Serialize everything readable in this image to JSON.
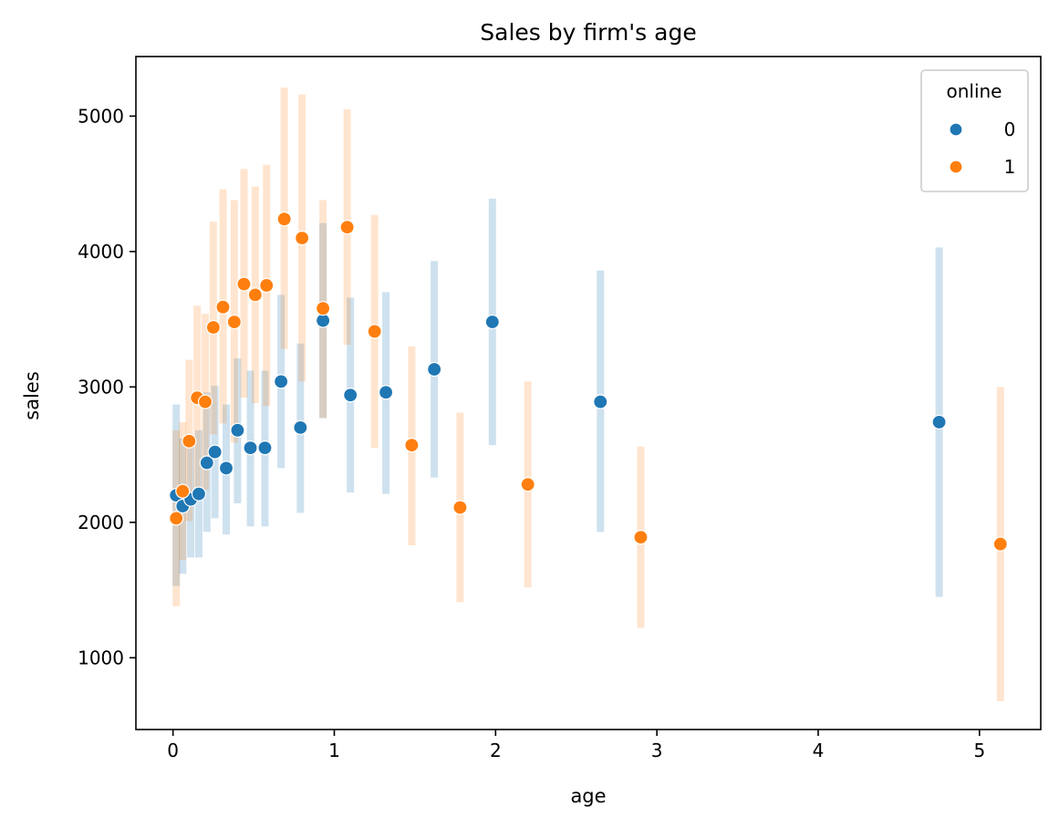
{
  "chart_data": {
    "type": "scatter",
    "title": "Sales by firm's age",
    "xlabel": "age",
    "ylabel": "sales",
    "xlim": [
      -0.23,
      5.38
    ],
    "ylim": [
      470,
      5440
    ],
    "xticks": [
      0,
      1,
      2,
      3,
      4,
      5
    ],
    "xtick_labels": [
      "0",
      "1",
      "2",
      "3",
      "4",
      "5"
    ],
    "yticks": [
      1000,
      2000,
      3000,
      4000,
      5000
    ],
    "ytick_labels": [
      "1000",
      "2000",
      "3000",
      "4000",
      "5000"
    ],
    "grid": false,
    "legend": {
      "title": "online",
      "placement": "top-right",
      "entries": [
        "0",
        "1"
      ]
    },
    "series": [
      {
        "name": "0",
        "color": "#1f77b4",
        "band_color": "#1f77b4",
        "points": [
          {
            "x": 0.02,
            "y": 2200,
            "lo": 1530,
            "hi": 2870
          },
          {
            "x": 0.06,
            "y": 2120,
            "lo": 1620,
            "hi": 2620
          },
          {
            "x": 0.11,
            "y": 2170,
            "lo": 1740,
            "hi": 2600
          },
          {
            "x": 0.16,
            "y": 2210,
            "lo": 1740,
            "hi": 2680
          },
          {
            "x": 0.21,
            "y": 2440,
            "lo": 1930,
            "hi": 2960
          },
          {
            "x": 0.26,
            "y": 2520,
            "lo": 2030,
            "hi": 3010
          },
          {
            "x": 0.33,
            "y": 2400,
            "lo": 1910,
            "hi": 2870
          },
          {
            "x": 0.4,
            "y": 2680,
            "lo": 2140,
            "hi": 3210
          },
          {
            "x": 0.48,
            "y": 2550,
            "lo": 1970,
            "hi": 3120
          },
          {
            "x": 0.57,
            "y": 2550,
            "lo": 1970,
            "hi": 3120
          },
          {
            "x": 0.67,
            "y": 3040,
            "lo": 2400,
            "hi": 3680
          },
          {
            "x": 0.79,
            "y": 2700,
            "lo": 2070,
            "hi": 3320
          },
          {
            "x": 0.93,
            "y": 3490,
            "lo": 2770,
            "hi": 4210
          },
          {
            "x": 1.1,
            "y": 2940,
            "lo": 2220,
            "hi": 3660
          },
          {
            "x": 1.32,
            "y": 2960,
            "lo": 2210,
            "hi": 3700
          },
          {
            "x": 1.62,
            "y": 3130,
            "lo": 2330,
            "hi": 3930
          },
          {
            "x": 1.98,
            "y": 3480,
            "lo": 2570,
            "hi": 4390
          },
          {
            "x": 2.65,
            "y": 2890,
            "lo": 1930,
            "hi": 3860
          },
          {
            "x": 4.75,
            "y": 2740,
            "lo": 1450,
            "hi": 4030
          }
        ]
      },
      {
        "name": "1",
        "color": "#ff7f0e",
        "band_color": "#ff7f0e",
        "points": [
          {
            "x": 0.02,
            "y": 2030,
            "lo": 1380,
            "hi": 2680
          },
          {
            "x": 0.06,
            "y": 2230,
            "lo": 1720,
            "hi": 2740
          },
          {
            "x": 0.1,
            "y": 2600,
            "lo": 2010,
            "hi": 3200
          },
          {
            "x": 0.15,
            "y": 2920,
            "lo": 2240,
            "hi": 3600
          },
          {
            "x": 0.2,
            "y": 2890,
            "lo": 2240,
            "hi": 3540
          },
          {
            "x": 0.25,
            "y": 3440,
            "lo": 2650,
            "hi": 4220
          },
          {
            "x": 0.31,
            "y": 3590,
            "lo": 2730,
            "hi": 4460
          },
          {
            "x": 0.38,
            "y": 3480,
            "lo": 2590,
            "hi": 4380
          },
          {
            "x": 0.44,
            "y": 3760,
            "lo": 2920,
            "hi": 4610
          },
          {
            "x": 0.51,
            "y": 3680,
            "lo": 2880,
            "hi": 4480
          },
          {
            "x": 0.58,
            "y": 3750,
            "lo": 2860,
            "hi": 4640
          },
          {
            "x": 0.69,
            "y": 4240,
            "lo": 3280,
            "hi": 5210
          },
          {
            "x": 0.8,
            "y": 4100,
            "lo": 3040,
            "hi": 5160
          },
          {
            "x": 0.93,
            "y": 3580,
            "lo": 2770,
            "hi": 4380
          },
          {
            "x": 1.08,
            "y": 4180,
            "lo": 3310,
            "hi": 5050
          },
          {
            "x": 1.25,
            "y": 3410,
            "lo": 2550,
            "hi": 4270
          },
          {
            "x": 1.48,
            "y": 2570,
            "lo": 1830,
            "hi": 3300
          },
          {
            "x": 1.78,
            "y": 2110,
            "lo": 1410,
            "hi": 2810
          },
          {
            "x": 2.2,
            "y": 2280,
            "lo": 1520,
            "hi": 3040
          },
          {
            "x": 2.9,
            "y": 1890,
            "lo": 1220,
            "hi": 2560
          },
          {
            "x": 5.13,
            "y": 1840,
            "lo": 680,
            "hi": 3000
          }
        ]
      }
    ]
  }
}
